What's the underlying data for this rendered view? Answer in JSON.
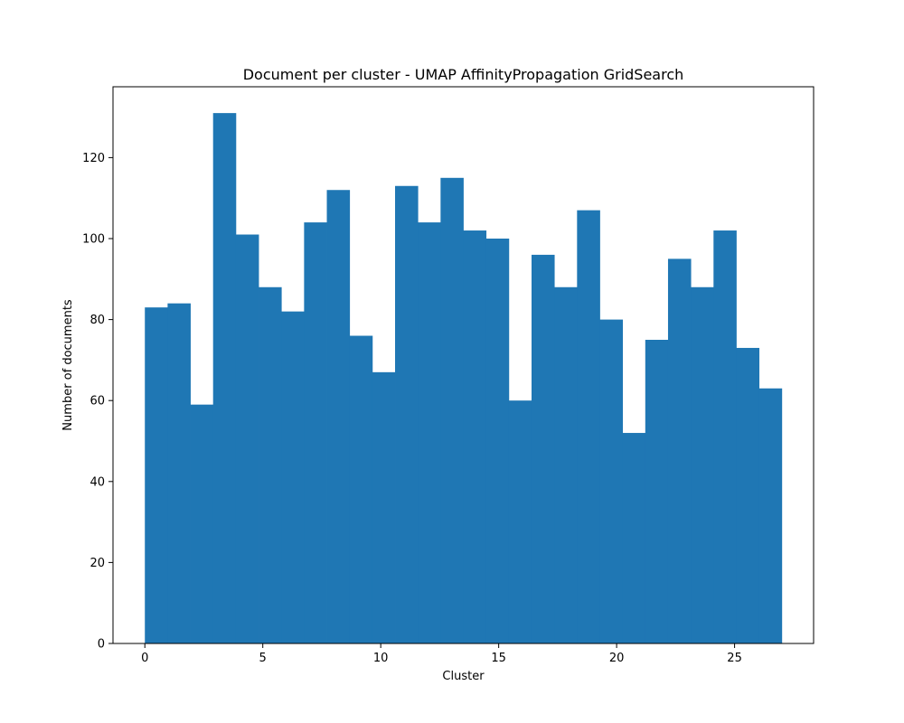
{
  "chart_data": {
    "type": "bar",
    "title": "Document per cluster - UMAP AffinityPropagation GridSearch",
    "xlabel": "Cluster",
    "ylabel": "Number of documents",
    "bin_start": 0,
    "bin_width": 0.9643,
    "values": [
      83,
      84,
      59,
      131,
      101,
      88,
      82,
      104,
      112,
      76,
      67,
      113,
      104,
      115,
      102,
      100,
      60,
      96,
      88,
      107,
      80,
      52,
      75,
      95,
      88,
      102,
      73,
      63
    ],
    "xlim": [
      -1.35,
      28.35
    ],
    "ylim": [
      0,
      137.5
    ],
    "xticks": [
      0,
      5,
      10,
      15,
      20,
      25
    ],
    "yticks": [
      0,
      20,
      40,
      60,
      80,
      100,
      120
    ],
    "bar_color": "#1f77b4",
    "grid": false
  }
}
